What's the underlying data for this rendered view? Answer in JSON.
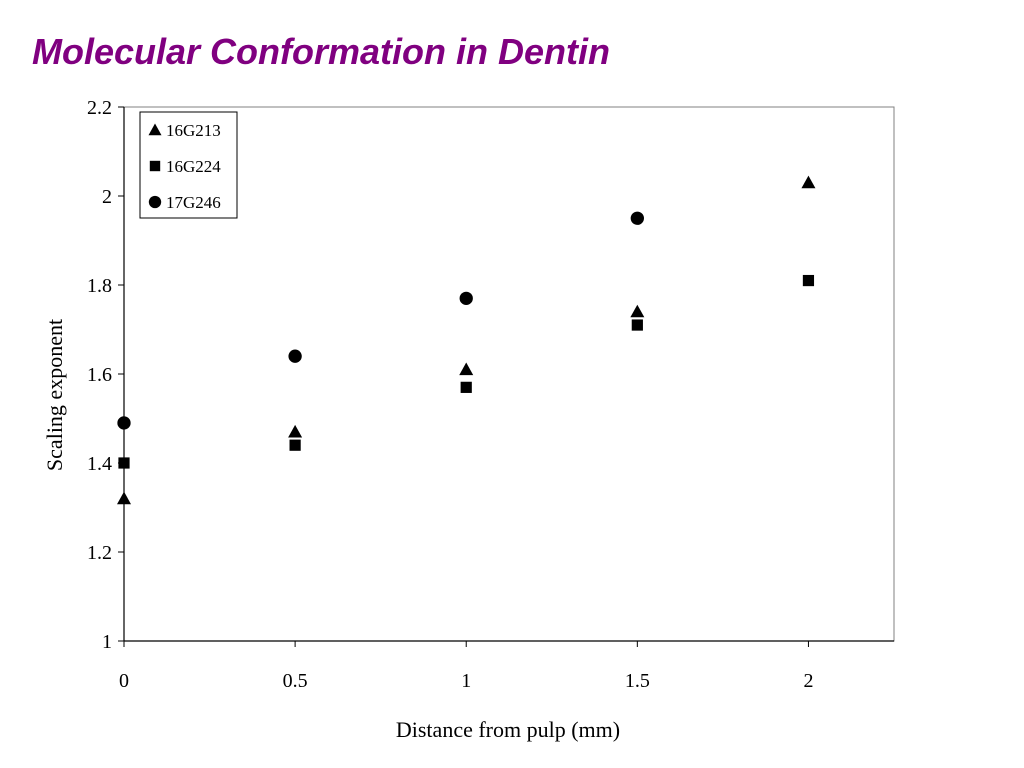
{
  "slide": {
    "title": "Molecular Conformation in Dentin",
    "title_color": "#800080"
  },
  "chart_data": {
    "type": "scatter",
    "xlabel": "Distance from pulp (mm)",
    "ylabel": "Scaling exponent",
    "xlim": [
      0,
      2.25
    ],
    "ylim": [
      1,
      2.2
    ],
    "x_ticks": [
      0,
      0.5,
      1,
      1.5,
      2
    ],
    "y_ticks": [
      1,
      1.2,
      1.4,
      1.6,
      1.8,
      2,
      2.2
    ],
    "x_tick_labels": [
      "0",
      "0.5",
      "1",
      "1.5",
      "2"
    ],
    "y_tick_labels": [
      "1",
      "1.2",
      "1.4",
      "1.6",
      "1.8",
      "2",
      "2.2"
    ],
    "grid": false,
    "legend_position": "top-left",
    "series": [
      {
        "name": "16G213",
        "marker": "triangle",
        "x": [
          0,
          0.5,
          1,
          1.5,
          2
        ],
        "y": [
          1.32,
          1.47,
          1.61,
          1.74,
          2.03
        ]
      },
      {
        "name": "16G224",
        "marker": "square",
        "x": [
          0,
          0.5,
          1,
          1.5,
          2
        ],
        "y": [
          1.4,
          1.44,
          1.57,
          1.71,
          1.81
        ]
      },
      {
        "name": "17G246",
        "marker": "circle",
        "x": [
          0,
          0.5,
          1,
          1.5
        ],
        "y": [
          1.49,
          1.64,
          1.77,
          1.95
        ]
      }
    ]
  }
}
